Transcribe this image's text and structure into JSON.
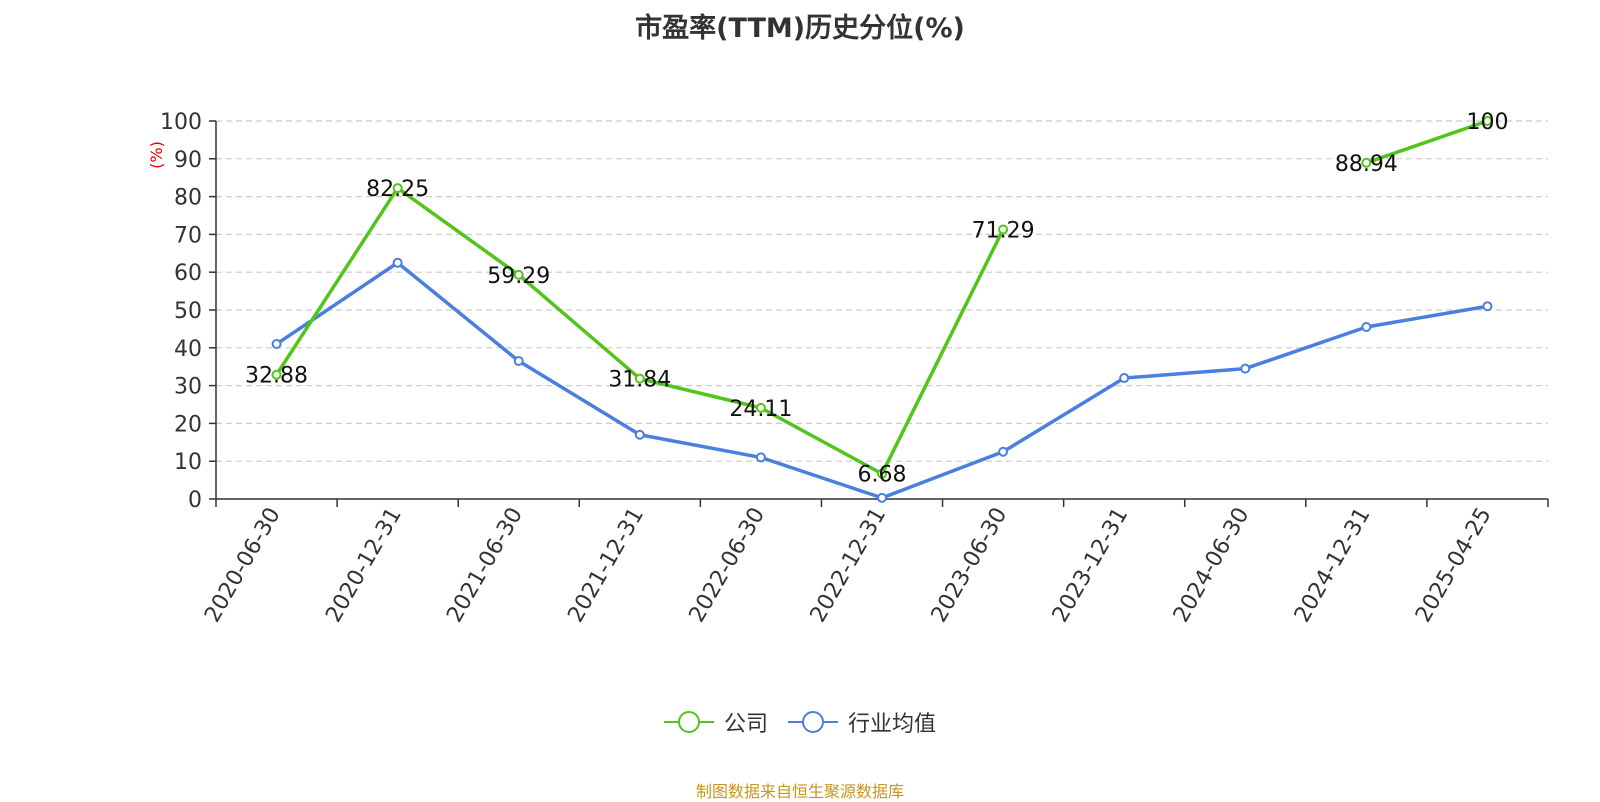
{
  "chart_data": {
    "type": "line",
    "title": "市盈率(TTM)历史分位(%)",
    "ylabel": "(%)",
    "ylim": [
      0,
      100
    ],
    "yticks": [
      0,
      10,
      20,
      30,
      40,
      50,
      60,
      70,
      80,
      90,
      100
    ],
    "categories": [
      "2020-06-30",
      "2020-12-31",
      "2021-06-30",
      "2021-12-31",
      "2022-06-30",
      "2022-12-31",
      "2023-06-30",
      "2023-12-31",
      "2024-06-30",
      "2024-12-31",
      "2025-04-25"
    ],
    "grid": true,
    "legend_position": "bottom",
    "series": [
      {
        "name": "公司",
        "color": "#52c41a",
        "show_labels": true,
        "values": [
          32.88,
          82.25,
          59.29,
          31.84,
          24.11,
          6.68,
          71.29,
          null,
          null,
          88.94,
          100
        ]
      },
      {
        "name": "行业均值",
        "color": "#4a7fe0",
        "show_labels": false,
        "values": [
          41,
          62.5,
          36.5,
          17,
          11,
          0.3,
          12.5,
          32,
          34.5,
          45.5,
          51
        ]
      }
    ]
  },
  "source": "制图数据来自恒生聚源数据库"
}
